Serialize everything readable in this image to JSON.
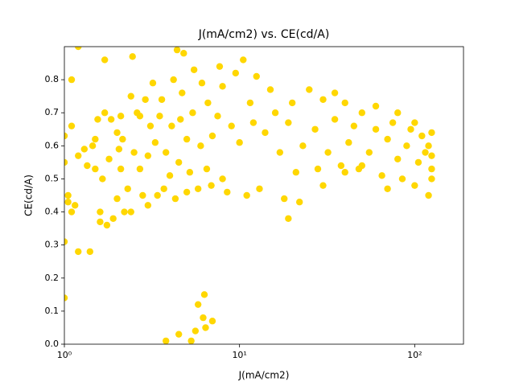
{
  "chart_data": {
    "type": "scatter",
    "title": "J(mA/cm2) vs. CE(cd/A)",
    "xlabel": "J(mA/cm2)",
    "ylabel": "CE(cd/A)",
    "color": "#ffd700",
    "xscale": "log",
    "xlim": [
      1,
      190
    ],
    "ylim": [
      0,
      0.9
    ],
    "xticks": [
      {
        "value": 1,
        "label": "10⁰"
      },
      {
        "value": 10,
        "label": "10¹"
      },
      {
        "value": 100,
        "label": "10²"
      }
    ],
    "yticks": [
      {
        "value": 0,
        "label": "0.0"
      },
      0.1,
      0.2,
      0.3,
      0.4,
      0.5,
      0.6,
      0.7,
      0.8
    ],
    "x": [
      1.0,
      1.0,
      1.0,
      1.0,
      1.05,
      1.05,
      1.1,
      1.1,
      1.1,
      1.15,
      1.2,
      1.2,
      1.2,
      1.3,
      1.35,
      1.4,
      1.45,
      1.5,
      1.5,
      1.55,
      1.6,
      1.6,
      1.65,
      1.7,
      1.7,
      1.75,
      1.8,
      1.85,
      1.9,
      2.0,
      2.0,
      2.05,
      2.1,
      2.1,
      2.15,
      2.2,
      2.3,
      2.4,
      2.4,
      2.45,
      2.5,
      2.6,
      2.7,
      2.7,
      2.8,
      2.9,
      3.0,
      3.0,
      3.1,
      3.2,
      3.3,
      3.4,
      3.5,
      3.6,
      3.7,
      3.8,
      3.8,
      4.0,
      4.1,
      4.2,
      4.3,
      4.4,
      4.5,
      4.5,
      4.6,
      4.7,
      4.8,
      5.0,
      5.0,
      5.2,
      5.3,
      5.4,
      5.5,
      5.6,
      5.8,
      5.8,
      6.0,
      6.1,
      6.2,
      6.3,
      6.4,
      6.5,
      6.6,
      6.9,
      7.0,
      7.0,
      7.5,
      7.7,
      8,
      8,
      8.5,
      9,
      9.5,
      10,
      10.5,
      11,
      11.5,
      12,
      12.5,
      13,
      14,
      15,
      16,
      17,
      18,
      19,
      19,
      20,
      21,
      22,
      23,
      25,
      27,
      28,
      30,
      32,
      35,
      38,
      40,
      42,
      45,
      48,
      50,
      55,
      60,
      65,
      70,
      75,
      80,
      85,
      90,
      95,
      100,
      105,
      110,
      115,
      120,
      120,
      125,
      125,
      125,
      125,
      30,
      40,
      60,
      80,
      100,
      50,
      70,
      35
    ],
    "values": [
      0.14,
      0.31,
      0.55,
      0.63,
      0.43,
      0.45,
      0.8,
      0.66,
      0.4,
      0.42,
      0.57,
      0.28,
      0.9,
      0.59,
      0.54,
      0.28,
      0.6,
      0.62,
      0.53,
      0.68,
      0.4,
      0.37,
      0.5,
      0.86,
      0.7,
      0.36,
      0.56,
      0.68,
      0.38,
      0.64,
      0.44,
      0.59,
      0.53,
      0.69,
      0.62,
      0.4,
      0.47,
      0.75,
      0.4,
      0.87,
      0.58,
      0.7,
      0.53,
      0.69,
      0.45,
      0.74,
      0.57,
      0.42,
      0.66,
      0.79,
      0.61,
      0.45,
      0.69,
      0.74,
      0.47,
      0.58,
      0.01,
      0.51,
      0.66,
      0.8,
      0.44,
      0.89,
      0.55,
      0.03,
      0.68,
      0.76,
      0.88,
      0.46,
      0.62,
      0.52,
      0.01,
      0.7,
      0.83,
      0.04,
      0.47,
      0.12,
      0.6,
      0.79,
      0.08,
      0.15,
      0.05,
      0.53,
      0.73,
      0.48,
      0.63,
      0.07,
      0.69,
      0.84,
      0.5,
      0.78,
      0.46,
      0.66,
      0.82,
      0.61,
      0.86,
      0.45,
      0.73,
      0.67,
      0.81,
      0.47,
      0.64,
      0.77,
      0.7,
      0.58,
      0.44,
      0.67,
      0.38,
      0.73,
      0.52,
      0.43,
      0.6,
      0.77,
      0.65,
      0.53,
      0.74,
      0.58,
      0.68,
      0.54,
      0.73,
      0.61,
      0.66,
      0.53,
      0.7,
      0.58,
      0.65,
      0.51,
      0.62,
      0.67,
      0.56,
      0.5,
      0.6,
      0.65,
      0.48,
      0.55,
      0.63,
      0.58,
      0.45,
      0.6,
      0.53,
      0.64,
      0.57,
      0.5,
      0.48,
      0.52,
      0.72,
      0.7,
      0.67,
      0.54,
      0.47,
      0.76
    ]
  }
}
